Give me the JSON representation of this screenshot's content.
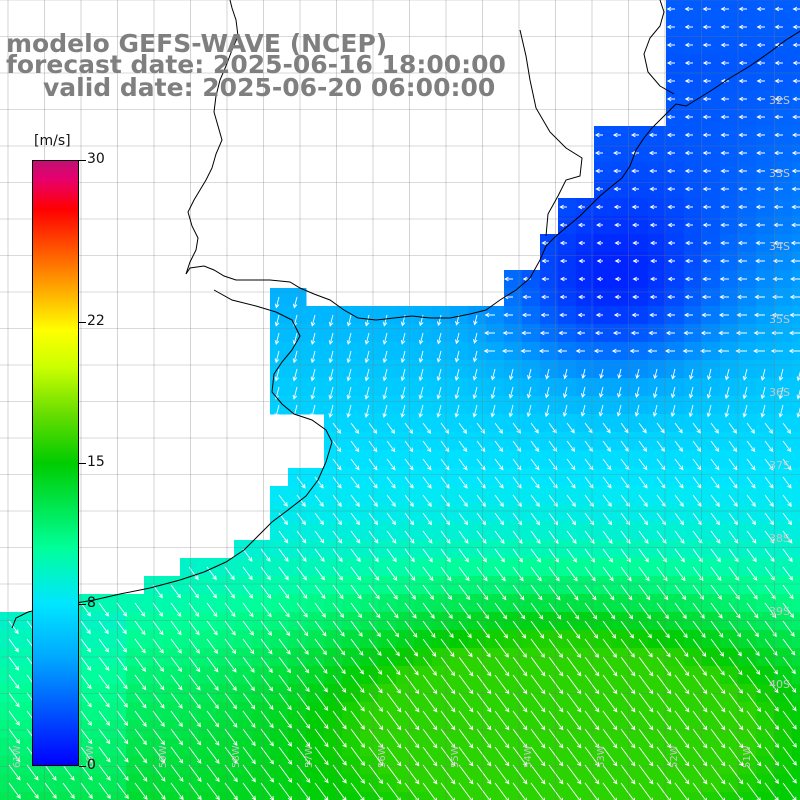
{
  "title": {
    "line1": "modelo GEFS-WAVE (NCEP)",
    "line2": "forecast date: 2025-06-16 18:00:00",
    "line3": "valid date: 2025-06-20 06:00:00"
  },
  "colorbar": {
    "units": "[m/s]",
    "labels": [
      "30",
      "22",
      "15",
      "8",
      "0"
    ],
    "label_values": [
      30,
      22,
      15,
      8,
      0
    ],
    "range": [
      0,
      30
    ],
    "colors": [
      "#0000ff",
      "#00aaff",
      "#00e6ff",
      "#00cc00",
      "#ffff00",
      "#ff0000",
      "#c01073"
    ]
  },
  "map": {
    "lat_labels": [
      "32S",
      "33S",
      "34S",
      "35S",
      "36S",
      "37S",
      "38S",
      "39S",
      "40S"
    ],
    "lon_labels": [
      "61W",
      "60W",
      "59W",
      "58W",
      "57W",
      "56W",
      "55W",
      "54W",
      "53W",
      "52W",
      "51W"
    ],
    "colors": {
      "land": "#ffffff",
      "coastline": "#000000",
      "grid": "#6e6e6e",
      "arrow": "#ffffff"
    }
  }
}
